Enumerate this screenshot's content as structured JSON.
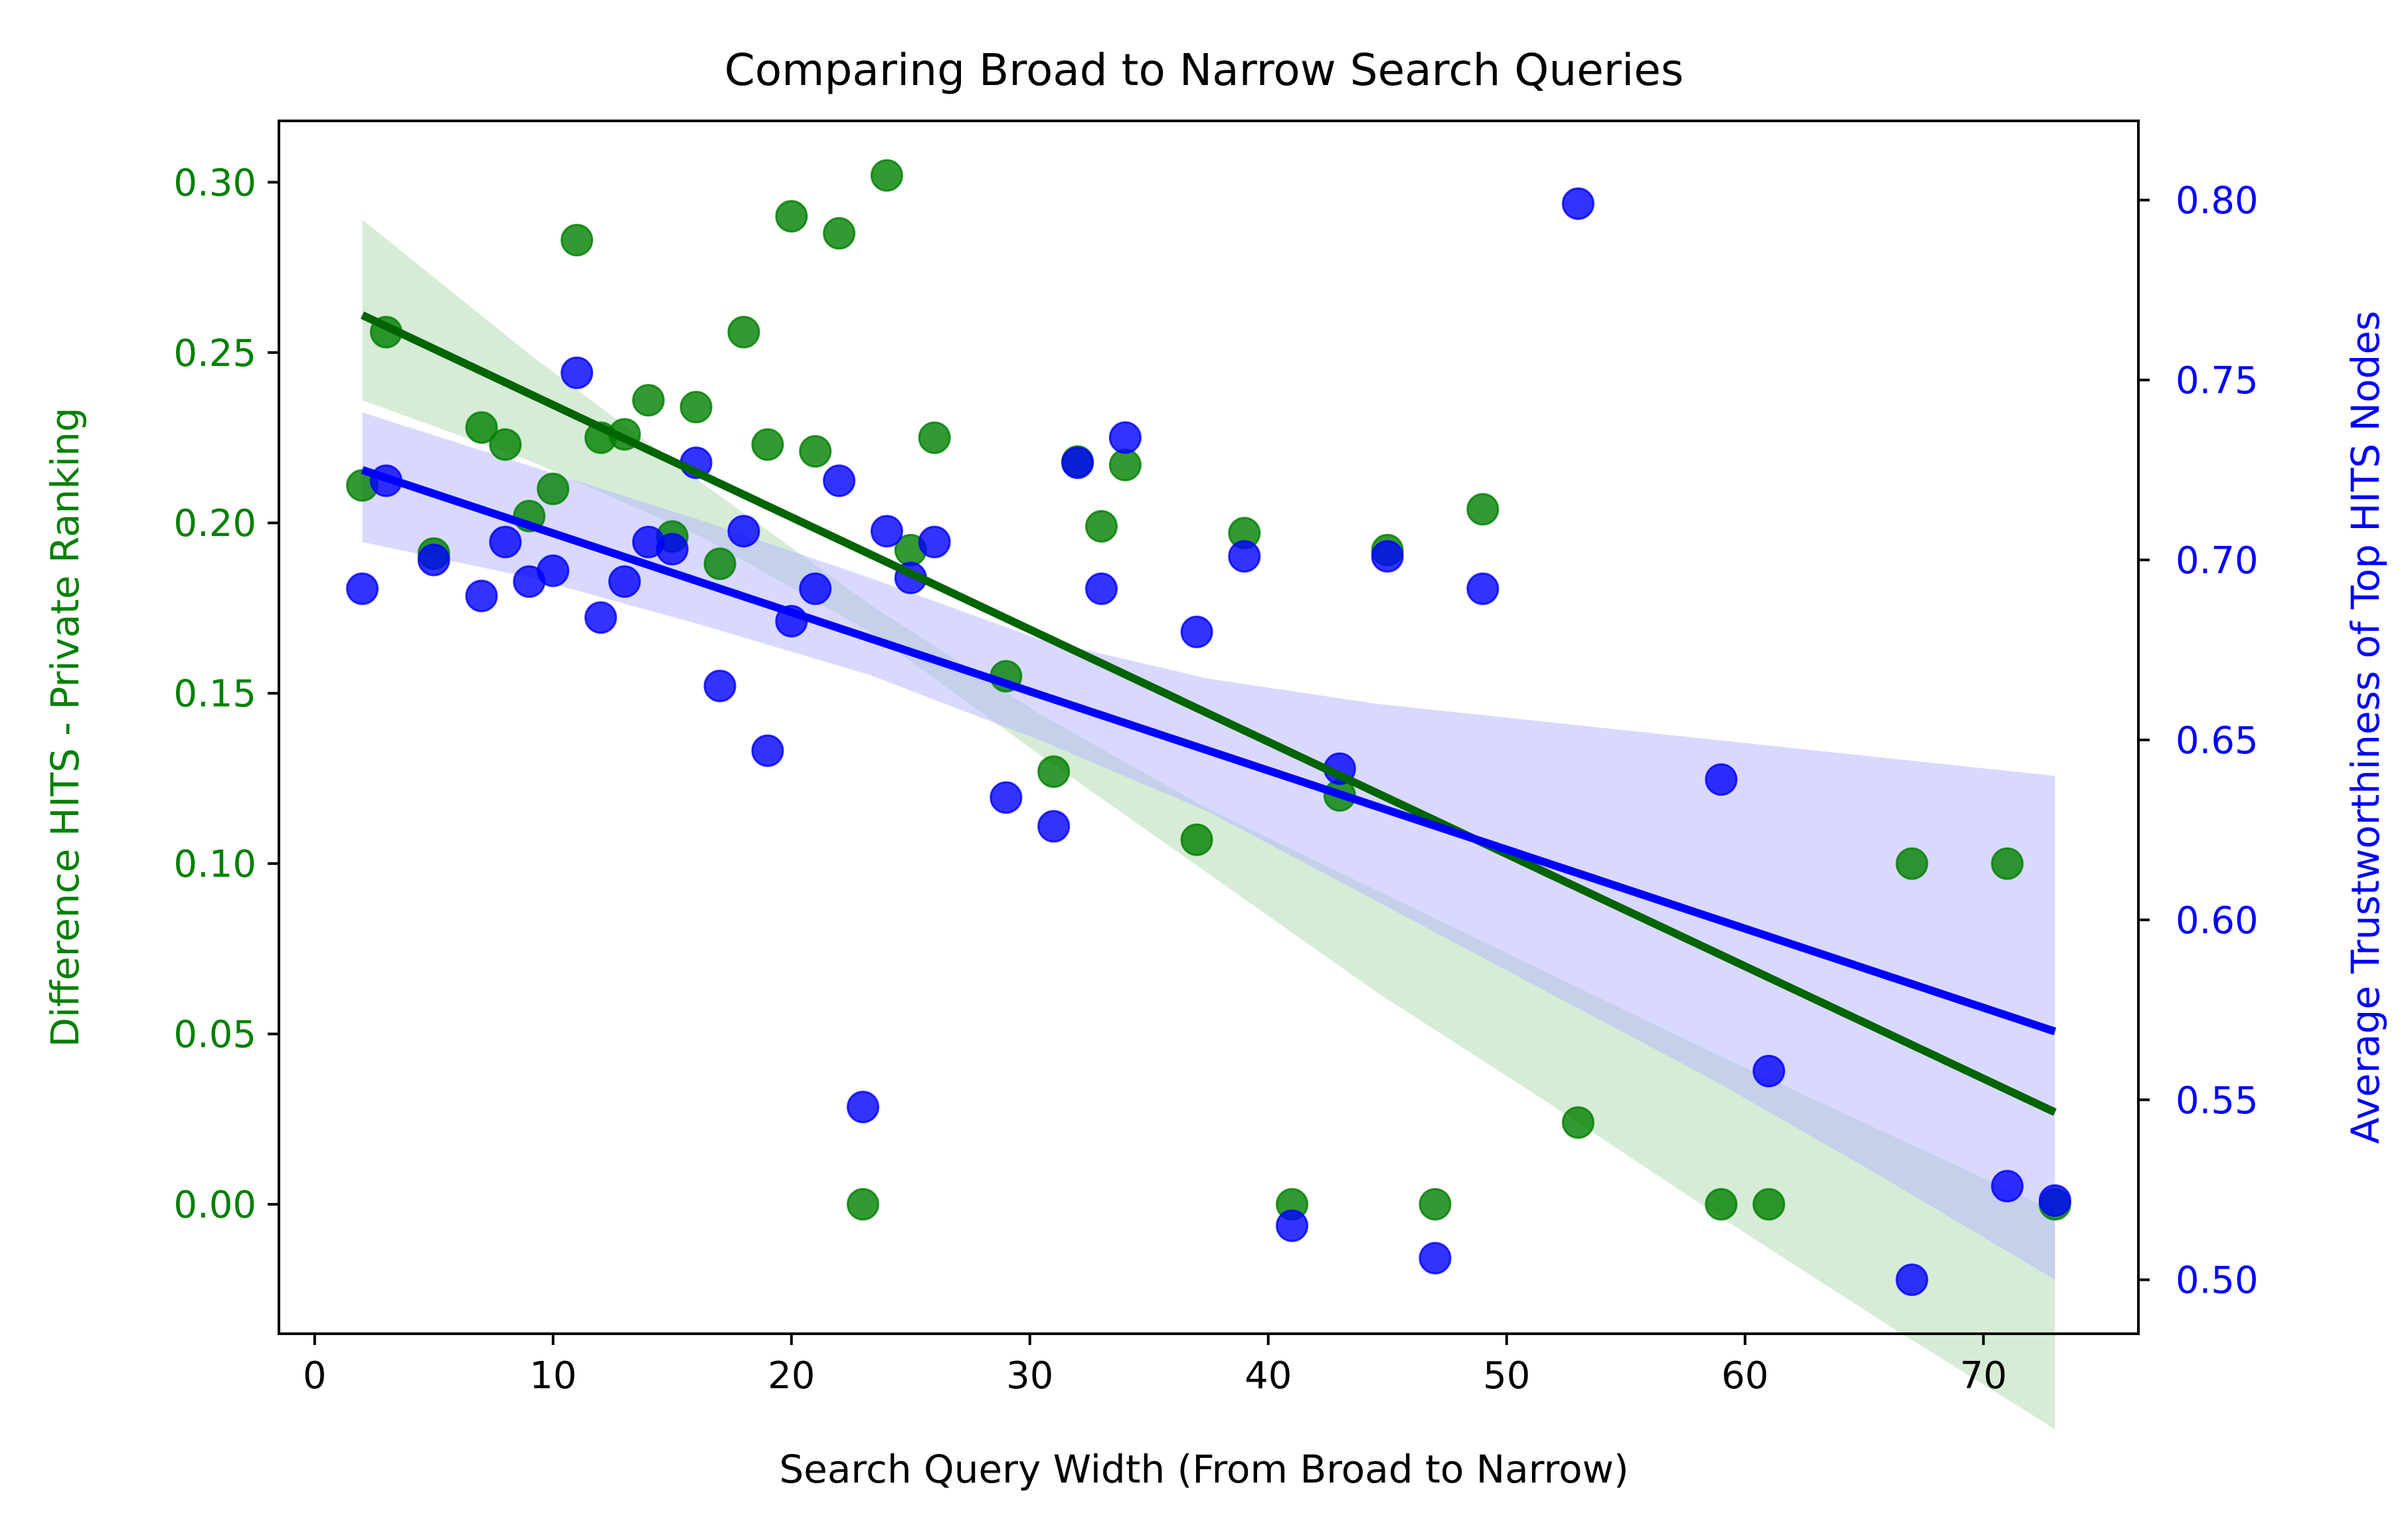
{
  "chart_data": {
    "type": "scatter",
    "title": "Comparing Broad to Narrow Search Queries",
    "xlabel": "Search Query Width (From Broad to Narrow)",
    "ylabel_left": "Difference HITS - Private Ranking",
    "ylabel_right": "Average Trustworthiness of Top HITS Nodes",
    "xlim": [
      -1.5,
      76.5
    ],
    "ylim_left": [
      -0.038,
      0.318
    ],
    "ylim_right": [
      0.485,
      0.822
    ],
    "xticks": [
      0,
      10,
      20,
      30,
      40,
      50,
      60,
      70
    ],
    "yticks_left": [
      0.0,
      0.05,
      0.1,
      0.15,
      0.2,
      0.25,
      0.3
    ],
    "yticks_right": [
      0.5,
      0.55,
      0.6,
      0.65,
      0.7,
      0.75,
      0.8
    ],
    "grid": false,
    "colors": {
      "left": "#008000",
      "right": "#0000ff",
      "left_band": "#c8e6c8",
      "right_band": "#b4b4ff",
      "axis": "#000000"
    },
    "series": [
      {
        "axis": "left",
        "color": "#008000",
        "x": [
          2,
          3,
          5,
          7,
          8,
          9,
          10,
          11,
          12,
          13,
          14,
          15,
          16,
          17,
          18,
          19,
          20,
          21,
          22,
          23,
          24,
          25,
          26,
          29,
          31,
          32,
          33,
          34,
          37,
          39,
          41,
          43,
          45,
          47,
          49,
          53,
          59,
          61,
          67,
          71,
          73
        ],
        "y": [
          0.211,
          0.256,
          0.191,
          0.228,
          0.223,
          0.202,
          0.21,
          0.283,
          0.225,
          0.226,
          0.236,
          0.196,
          0.234,
          0.188,
          0.256,
          0.223,
          0.29,
          0.221,
          0.285,
          0.0,
          0.302,
          0.192,
          0.225,
          0.155,
          0.127,
          0.218,
          0.199,
          0.217,
          0.107,
          0.197,
          0.0,
          0.12,
          0.192,
          0.0,
          0.204,
          0.024,
          0.0,
          0.0,
          0.1,
          0.1,
          0.0
        ],
        "fit": {
          "x": [
            2,
            73
          ],
          "y": [
            0.261,
            0.027
          ]
        },
        "band_upper": [
          0.289,
          0.249,
          0.212,
          0.176,
          0.144,
          0.116,
          0.092,
          0.068,
          0.044,
          0.021,
          -0.002
        ],
        "band_lower": [
          0.236,
          0.218,
          0.196,
          0.168,
          0.132,
          0.097,
          0.062,
          0.03,
          -0.003,
          -0.035,
          -0.066
        ]
      },
      {
        "axis": "right",
        "color": "#0000ff",
        "x": [
          2,
          3,
          5,
          7,
          8,
          9,
          10,
          11,
          12,
          13,
          14,
          15,
          16,
          17,
          18,
          19,
          20,
          21,
          22,
          23,
          24,
          25,
          26,
          29,
          31,
          32,
          33,
          34,
          37,
          39,
          41,
          43,
          45,
          47,
          49,
          53,
          59,
          61,
          67,
          71,
          73
        ],
        "y": [
          0.692,
          0.722,
          0.7,
          0.69,
          0.705,
          0.694,
          0.697,
          0.752,
          0.684,
          0.694,
          0.705,
          0.703,
          0.727,
          0.665,
          0.708,
          0.647,
          0.683,
          0.692,
          0.722,
          0.548,
          0.708,
          0.695,
          0.705,
          0.634,
          0.626,
          0.727,
          0.692,
          0.734,
          0.68,
          0.701,
          0.515,
          0.642,
          0.701,
          0.506,
          0.692,
          0.799,
          0.639,
          0.558,
          0.5,
          0.526,
          0.522
        ],
        "fit": {
          "x": [
            2,
            73
          ],
          "y": [
            0.725,
            0.569
          ]
        },
        "band_upper": [
          0.741,
          0.726,
          0.711,
          0.695,
          0.678,
          0.667,
          0.66,
          0.655,
          0.65,
          0.645,
          0.64
        ],
        "band_lower": [
          0.705,
          0.695,
          0.682,
          0.668,
          0.65,
          0.63,
          0.605,
          0.58,
          0.555,
          0.528,
          0.5
        ]
      }
    ]
  }
}
